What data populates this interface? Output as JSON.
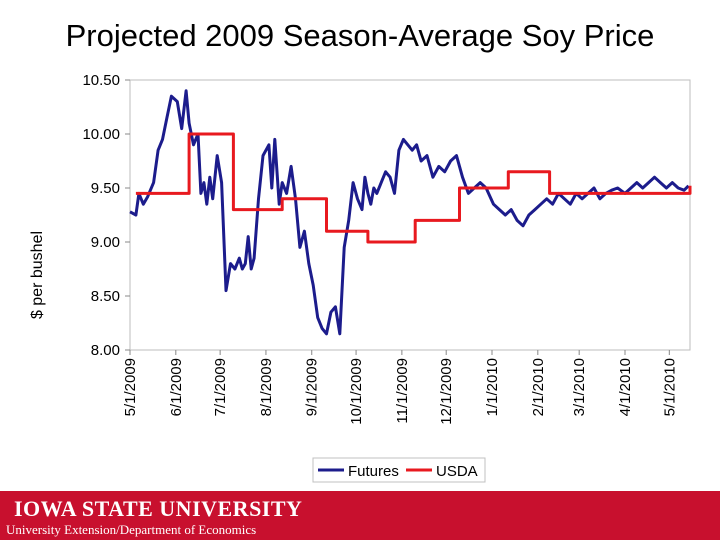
{
  "slide": {
    "title": "Projected 2009 Season-Average Soy Price",
    "university": "IOWA STATE UNIVERSITY",
    "department": "University Extension/Department of Economics"
  },
  "colors": {
    "futures": "#1c1c8c",
    "usda": "#e8191f",
    "footer": "#c8102e"
  },
  "chart_data": {
    "type": "line",
    "title": "",
    "xlabel": "",
    "ylabel": "$ per bushel",
    "ylim": [
      8.0,
      10.5
    ],
    "yticks": [
      "8.00",
      "8.50",
      "9.00",
      "9.50",
      "10.00",
      "10.50"
    ],
    "xlim": [
      "2009-05-01",
      "2010-05-15"
    ],
    "xticks": [
      "5/1/2009",
      "6/1/2009",
      "7/1/2009",
      "8/1/2009",
      "9/1/2009",
      "10/1/2009",
      "11/1/2009",
      "12/1/2009",
      "1/1/2010",
      "2/1/2010",
      "3/1/2010",
      "4/1/2010",
      "5/1/2010"
    ],
    "grid": "none",
    "legend": "bottom",
    "series": [
      {
        "name": "Futures",
        "x": [
          "2009-05-01",
          "2009-05-05",
          "2009-05-07",
          "2009-05-10",
          "2009-05-13",
          "2009-05-17",
          "2009-05-20",
          "2009-05-23",
          "2009-05-26",
          "2009-05-29",
          "2009-06-02",
          "2009-06-05",
          "2009-06-08",
          "2009-06-10",
          "2009-06-13",
          "2009-06-16",
          "2009-06-18",
          "2009-06-20",
          "2009-06-22",
          "2009-06-24",
          "2009-06-26",
          "2009-06-29",
          "2009-07-02",
          "2009-07-05",
          "2009-07-08",
          "2009-07-11",
          "2009-07-14",
          "2009-07-16",
          "2009-07-18",
          "2009-07-20",
          "2009-07-22",
          "2009-07-24",
          "2009-07-27",
          "2009-07-30",
          "2009-08-03",
          "2009-08-05",
          "2009-08-07",
          "2009-08-10",
          "2009-08-12",
          "2009-08-15",
          "2009-08-18",
          "2009-08-21",
          "2009-08-24",
          "2009-08-27",
          "2009-08-30",
          "2009-09-02",
          "2009-09-05",
          "2009-09-08",
          "2009-09-11",
          "2009-09-14",
          "2009-09-17",
          "2009-09-20",
          "2009-09-23",
          "2009-09-26",
          "2009-09-29",
          "2009-10-02",
          "2009-10-05",
          "2009-10-07",
          "2009-10-09",
          "2009-10-11",
          "2009-10-13",
          "2009-10-15",
          "2009-10-18",
          "2009-10-21",
          "2009-10-24",
          "2009-10-27",
          "2009-10-30",
          "2009-11-02",
          "2009-11-05",
          "2009-11-08",
          "2009-11-11",
          "2009-11-14",
          "2009-11-18",
          "2009-11-22",
          "2009-11-26",
          "2009-11-30",
          "2009-12-04",
          "2009-12-08",
          "2009-12-12",
          "2009-12-16",
          "2009-12-20",
          "2009-12-24",
          "2009-12-28",
          "2010-01-02",
          "2010-01-06",
          "2010-01-10",
          "2010-01-14",
          "2010-01-18",
          "2010-01-22",
          "2010-01-26",
          "2010-01-30",
          "2010-02-03",
          "2010-02-07",
          "2010-02-11",
          "2010-02-15",
          "2010-02-19",
          "2010-02-23",
          "2010-02-27",
          "2010-03-03",
          "2010-03-07",
          "2010-03-11",
          "2010-03-15",
          "2010-03-19",
          "2010-03-23",
          "2010-03-27",
          "2010-04-01",
          "2010-04-05",
          "2010-04-09",
          "2010-04-13",
          "2010-04-17",
          "2010-04-21",
          "2010-04-25",
          "2010-04-29",
          "2010-05-03",
          "2010-05-07",
          "2010-05-11",
          "2010-05-14"
        ],
        "y": [
          9.28,
          9.25,
          9.45,
          9.35,
          9.42,
          9.55,
          9.85,
          9.95,
          10.15,
          10.35,
          10.3,
          10.05,
          10.4,
          10.1,
          9.9,
          10.0,
          9.45,
          9.55,
          9.35,
          9.6,
          9.4,
          9.8,
          9.55,
          8.55,
          8.8,
          8.75,
          8.85,
          8.75,
          8.8,
          9.05,
          8.75,
          8.85,
          9.4,
          9.8,
          9.9,
          9.5,
          9.95,
          9.35,
          9.55,
          9.45,
          9.7,
          9.4,
          8.95,
          9.1,
          8.8,
          8.6,
          8.3,
          8.2,
          8.15,
          8.35,
          8.4,
          8.15,
          8.95,
          9.2,
          9.55,
          9.4,
          9.3,
          9.6,
          9.45,
          9.35,
          9.5,
          9.45,
          9.55,
          9.65,
          9.6,
          9.45,
          9.85,
          9.95,
          9.9,
          9.85,
          9.9,
          9.75,
          9.8,
          9.6,
          9.7,
          9.65,
          9.75,
          9.8,
          9.6,
          9.45,
          9.5,
          9.55,
          9.5,
          9.35,
          9.3,
          9.25,
          9.3,
          9.2,
          9.15,
          9.25,
          9.3,
          9.35,
          9.4,
          9.35,
          9.45,
          9.4,
          9.35,
          9.45,
          9.4,
          9.45,
          9.5,
          9.4,
          9.45,
          9.48,
          9.5,
          9.45,
          9.5,
          9.55,
          9.5,
          9.55,
          9.6,
          9.55,
          9.5,
          9.55,
          9.5,
          9.48,
          9.52
        ]
      },
      {
        "name": "USDA",
        "step": true,
        "x": [
          "2009-05-05",
          "2009-06-10",
          "2009-07-10",
          "2009-08-12",
          "2009-09-11",
          "2009-10-09",
          "2009-11-10",
          "2009-12-10",
          "2010-01-12",
          "2010-02-09",
          "2010-03-10",
          "2010-04-09",
          "2010-05-11",
          "2010-05-15"
        ],
        "y": [
          9.45,
          10.0,
          9.3,
          9.4,
          9.1,
          9.0,
          9.2,
          9.5,
          9.65,
          9.45,
          9.45,
          9.45,
          9.45,
          9.52
        ]
      }
    ]
  }
}
